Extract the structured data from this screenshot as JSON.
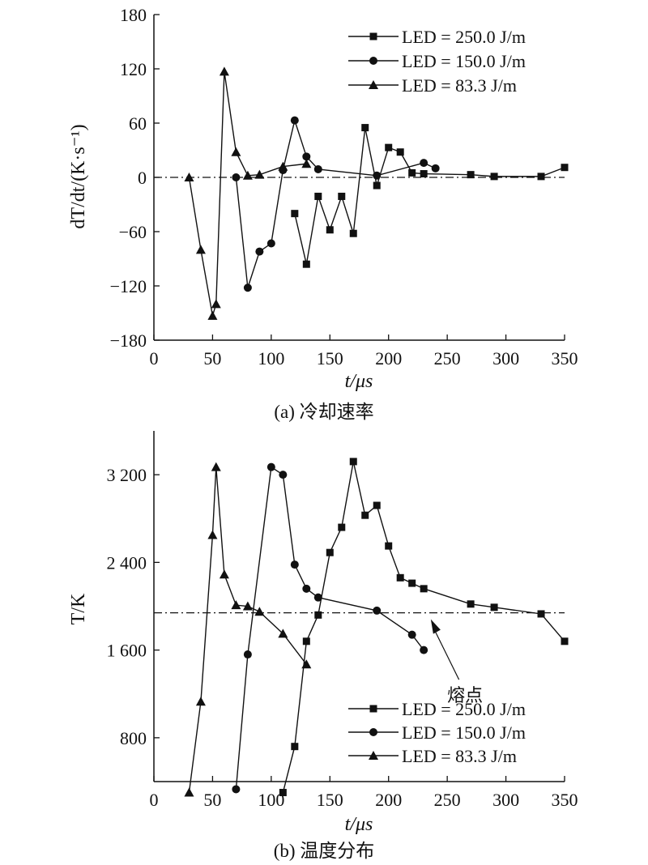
{
  "chart_data": [
    {
      "id": "a",
      "type": "line",
      "caption": "(a) 冷却速率",
      "ylabel": "dT/dt/(K·s⁻¹)",
      "xlabel": "t/μs",
      "xlim": [
        0,
        350
      ],
      "ylim": [
        -180,
        180
      ],
      "xticks": [
        0,
        50,
        100,
        150,
        200,
        250,
        300,
        350
      ],
      "yticks": [
        -180,
        -120,
        -60,
        0,
        60,
        120,
        180
      ],
      "ytick_labels": [
        "−180",
        "−120",
        "−60",
        "0",
        "60",
        "120",
        "180"
      ],
      "reference_line": {
        "y": 0,
        "style": "dash-dot"
      },
      "legend_position": "top-right",
      "series": [
        {
          "name": "LED = 250.0 J/m",
          "marker": "square",
          "x": [
            120,
            130,
            140,
            150,
            160,
            170,
            180,
            190,
            200,
            210,
            220,
            230,
            270,
            290,
            330,
            350
          ],
          "y": [
            -40,
            -96,
            -21,
            -58,
            -21,
            -62,
            55,
            -9,
            33,
            28,
            5,
            4,
            3,
            1,
            1,
            11
          ]
        },
        {
          "name": "LED = 150.0 J/m",
          "marker": "circle",
          "x": [
            70,
            80,
            90,
            100,
            110,
            120,
            130,
            140,
            190,
            230,
            240
          ],
          "y": [
            0,
            -122,
            -82,
            -73,
            8,
            63,
            23,
            9,
            2,
            16,
            10
          ]
        },
        {
          "name": "LED = 83.3 J/m",
          "marker": "triangle",
          "x": [
            30,
            40,
            50,
            53,
            60,
            70,
            80,
            90,
            110,
            130
          ],
          "y": [
            0,
            -80,
            -153,
            -140,
            117,
            28,
            2,
            3,
            12,
            15
          ]
        }
      ]
    },
    {
      "id": "b",
      "type": "line",
      "caption": "(b) 温度分布",
      "ylabel": "T/K",
      "xlabel": "t/μs",
      "xlim": [
        0,
        350
      ],
      "ylim": [
        400,
        3600
      ],
      "xticks": [
        0,
        50,
        100,
        150,
        200,
        250,
        300,
        350
      ],
      "yticks": [
        800,
        1600,
        2400,
        3200
      ],
      "ytick_labels": [
        "800",
        "1 600",
        "2 400",
        "3 200"
      ],
      "reference_line": {
        "y": 1940,
        "style": "dash-dot",
        "label": "熔点"
      },
      "legend_position": "bottom-right",
      "series": [
        {
          "name": "LED = 250.0 J/m",
          "marker": "square",
          "x": [
            110,
            120,
            130,
            140,
            150,
            160,
            170,
            180,
            190,
            200,
            210,
            220,
            230,
            270,
            290,
            330,
            350
          ],
          "y": [
            300,
            720,
            1680,
            1920,
            2490,
            2720,
            3320,
            2830,
            2920,
            2550,
            2260,
            2210,
            2160,
            2020,
            1990,
            1930,
            1680
          ]
        },
        {
          "name": "LED = 150.0 J/m",
          "marker": "circle",
          "x": [
            70,
            80,
            100,
            110,
            120,
            130,
            140,
            190,
            220,
            230
          ],
          "y": [
            330,
            1560,
            3270,
            3200,
            2380,
            2160,
            2080,
            1960,
            1740,
            1600
          ]
        },
        {
          "name": "LED = 83.3 J/m",
          "marker": "triangle",
          "x": [
            30,
            40,
            50,
            53,
            60,
            70,
            80,
            90,
            110,
            130
          ],
          "y": [
            300,
            1130,
            2650,
            3270,
            2290,
            2010,
            2000,
            1950,
            1750,
            1470
          ]
        }
      ]
    }
  ]
}
